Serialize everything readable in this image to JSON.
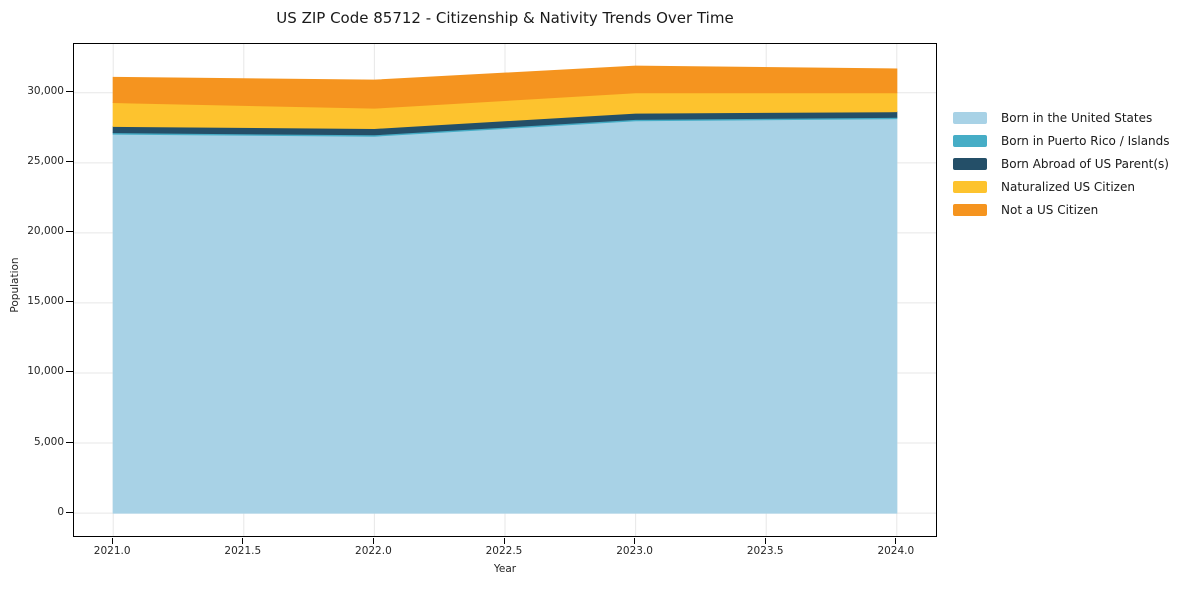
{
  "figure": {
    "title": "US ZIP Code 85712 - Citizenship & Nativity Trends Over Time"
  },
  "axes": {
    "xlabel": "Year",
    "ylabel": "Population",
    "x_tick_labels": [
      "2021.0",
      "2021.5",
      "2022.0",
      "2022.5",
      "2023.0",
      "2023.5",
      "2024.0"
    ],
    "y_tick_labels": [
      "0",
      "5,000",
      "10,000",
      "15,000",
      "20,000",
      "25,000",
      "30,000"
    ]
  },
  "legend": {
    "position": "right",
    "items": [
      {
        "label": "Born in the United States",
        "color": "#a8d2e6"
      },
      {
        "label": "Born in Puerto Rico / Islands",
        "color": "#46adc6"
      },
      {
        "label": "Born Abroad of US Parent(s)",
        "color": "#244f68"
      },
      {
        "label": "Naturalized US Citizen",
        "color": "#fdc32e"
      },
      {
        "label": "Not a US Citizen",
        "color": "#f5941f"
      }
    ]
  },
  "chart_data": {
    "type": "area",
    "stacked": true,
    "title": "US ZIP Code 85712 - Citizenship & Nativity Trends Over Time",
    "xlabel": "Year",
    "ylabel": "Population",
    "x": [
      2021,
      2022,
      2023,
      2024
    ],
    "series": [
      {
        "name": "Born in the United States",
        "color": "#a8d2e6",
        "values": [
          27050,
          26900,
          28000,
          28150
        ]
      },
      {
        "name": "Born in Puerto Rico / Islands",
        "color": "#46adc6",
        "values": [
          100,
          100,
          100,
          100
        ]
      },
      {
        "name": "Born Abroad of US Parent(s)",
        "color": "#244f68",
        "values": [
          450,
          450,
          450,
          400
        ]
      },
      {
        "name": "Naturalized US Citizen",
        "color": "#fdc32e",
        "values": [
          1700,
          1450,
          1450,
          1350
        ]
      },
      {
        "name": "Not a US Citizen",
        "color": "#f5941f",
        "values": [
          1800,
          2000,
          1900,
          1700
        ]
      }
    ],
    "totals": [
      31100,
      30900,
      31900,
      31700
    ],
    "x_ticks": [
      2021.0,
      2021.5,
      2022.0,
      2022.5,
      2023.0,
      2023.5,
      2024.0
    ],
    "y_ticks": [
      0,
      5000,
      10000,
      15000,
      20000,
      25000,
      30000
    ],
    "xlim": [
      2020.85,
      2024.15
    ],
    "ylim": [
      -1635,
      33480
    ],
    "grid": true,
    "grid_color": "#e7e7e7",
    "legend_position": "right-outside"
  }
}
